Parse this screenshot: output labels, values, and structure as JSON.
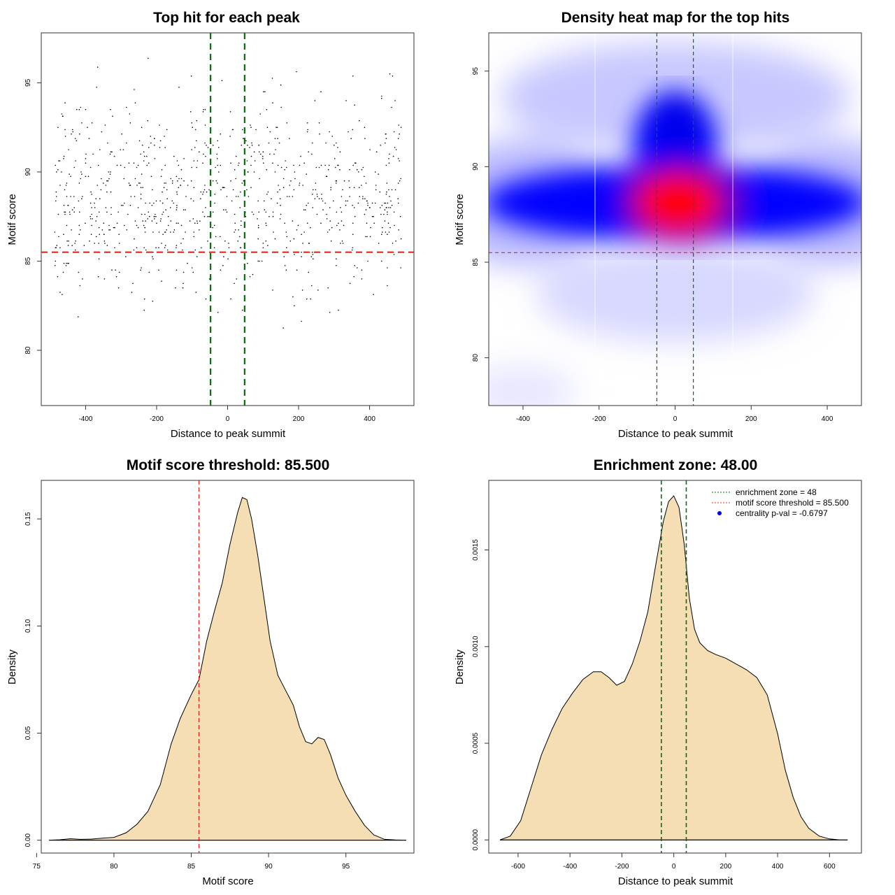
{
  "chart_data": [
    {
      "type": "scatter",
      "title": "Top hit for each peak",
      "xlabel": "Distance to peak summit",
      "ylabel": "Motif score",
      "xlim": [
        -525,
        525
      ],
      "ylim": [
        76.9,
        97.8
      ],
      "xticks": [
        -400,
        -200,
        0,
        200,
        400
      ],
      "yticks": [
        80,
        85,
        90,
        95
      ],
      "hlines": [
        {
          "value": 85.5,
          "color": "#e0271f",
          "style": "dashed"
        }
      ],
      "vlines": [
        {
          "value": -48,
          "color": "#0f6b12",
          "style": "dashed"
        },
        {
          "value": 48,
          "color": "#0f6b12",
          "style": "dashed"
        }
      ],
      "point_count": 900,
      "point_color": "#000000"
    },
    {
      "type": "heatmap",
      "title": "Density heat map for the top hits",
      "xlabel": "Distance to peak summit",
      "ylabel": "Motif score",
      "xlim": [
        -490,
        490
      ],
      "ylim": [
        77.5,
        97.0
      ],
      "xticks": [
        -400,
        -200,
        0,
        200,
        400
      ],
      "yticks": [
        80,
        85,
        90,
        95
      ],
      "hlines": [
        {
          "value": 85.5,
          "color": "#e0271f",
          "style": "dashed"
        }
      ],
      "vlines": [
        {
          "value": -48,
          "color": "#0f6b12",
          "style": "dashed"
        },
        {
          "value": 48,
          "color": "#0f6b12",
          "style": "dashed"
        }
      ],
      "colorscale": [
        "#ffffff",
        "#0000ff",
        "#ff0000"
      ],
      "density_peak": {
        "x": 10,
        "y": 88.2
      }
    },
    {
      "type": "area",
      "title": "Motif score threshold: 85.500",
      "xlabel": "Motif score",
      "ylabel": "Density",
      "xlim": [
        75.3,
        99.4
      ],
      "ylim": [
        -0.006,
        0.168
      ],
      "xticks": [
        75,
        80,
        85,
        90,
        95
      ],
      "yticks": [
        0.0,
        0.05,
        0.1,
        0.15
      ],
      "ytick_labels": [
        "0.00",
        "0.05",
        "0.10",
        "0.15"
      ],
      "fill": "#f5deb3",
      "vlines": [
        {
          "value": 85.5,
          "color": "#e0271f",
          "style": "dashed"
        }
      ],
      "x": [
        75.8,
        76.5,
        77.2,
        77.8,
        78.5,
        79.3,
        80.0,
        80.8,
        81.5,
        82.2,
        83.0,
        83.7,
        84.3,
        85.0,
        85.5,
        86.0,
        86.5,
        87.0,
        87.5,
        88.0,
        88.3,
        88.6,
        88.9,
        89.3,
        89.7,
        90.1,
        90.6,
        91.1,
        91.6,
        92.0,
        92.4,
        92.8,
        93.2,
        93.6,
        94.0,
        94.5,
        95.0,
        95.6,
        96.2,
        96.8,
        97.5,
        98.2,
        98.9
      ],
      "y": [
        0.0,
        0.0002,
        0.0007,
        0.0004,
        0.0005,
        0.001,
        0.0013,
        0.0035,
        0.0075,
        0.0135,
        0.026,
        0.045,
        0.057,
        0.068,
        0.075,
        0.093,
        0.107,
        0.12,
        0.138,
        0.153,
        0.16,
        0.159,
        0.15,
        0.133,
        0.113,
        0.093,
        0.077,
        0.07,
        0.063,
        0.053,
        0.046,
        0.045,
        0.048,
        0.047,
        0.04,
        0.029,
        0.021,
        0.0135,
        0.007,
        0.0025,
        0.0004,
        0.0001,
        0.0
      ]
    },
    {
      "type": "area",
      "title": "Enrichment zone: 48.00",
      "xlabel": "Distance to peak summit",
      "ylabel": "Density",
      "xlim": [
        -713,
        723
      ],
      "ylim": [
        -6.8e-05,
        0.00186
      ],
      "xticks": [
        -600,
        -400,
        -200,
        0,
        200,
        400,
        600
      ],
      "yticks": [
        0.0,
        0.0005,
        0.001,
        0.0015
      ],
      "ytick_labels": [
        "0.0000",
        "0.0005",
        "0.0010",
        "0.0015"
      ],
      "fill": "#f5deb3",
      "vlines": [
        {
          "value": -48,
          "color": "#0f6b12",
          "style": "dashed"
        },
        {
          "value": 48,
          "color": "#0f6b12",
          "style": "dashed"
        }
      ],
      "x": [
        -670,
        -630,
        -590,
        -550,
        -510,
        -470,
        -430,
        -390,
        -350,
        -310,
        -280,
        -250,
        -220,
        -190,
        -160,
        -130,
        -100,
        -70,
        -40,
        -20,
        0,
        20,
        40,
        60,
        80,
        100,
        130,
        160,
        200,
        240,
        280,
        320,
        360,
        400,
        430,
        460,
        490,
        520,
        560,
        600,
        640,
        670
      ],
      "y": [
        0.0,
        2e-05,
        0.0001,
        0.00027,
        0.00044,
        0.00057,
        0.00068,
        0.00076,
        0.00083,
        0.00087,
        0.00087,
        0.00084,
        0.0008,
        0.00082,
        0.00091,
        0.00103,
        0.00118,
        0.00142,
        0.00165,
        0.00175,
        0.00178,
        0.00172,
        0.00153,
        0.00125,
        0.00109,
        0.00102,
        0.00098,
        0.00096,
        0.00094,
        0.00091,
        0.00088,
        0.00084,
        0.00075,
        0.00055,
        0.00036,
        0.00022,
        0.00012,
        6e-05,
        2e-05,
        5e-06,
        0.0,
        0.0
      ],
      "legend": {
        "position": "top-right",
        "items": [
          {
            "label": "enrichment zone = 48",
            "color": "#0f6b12",
            "style": "dotted-line"
          },
          {
            "label": "motif score threshold = 85.500",
            "color": "#e0271f",
            "style": "dotted-line"
          },
          {
            "label": "centrality p-val = -0.6797",
            "color": "#0000ff",
            "style": "point"
          }
        ]
      }
    }
  ]
}
